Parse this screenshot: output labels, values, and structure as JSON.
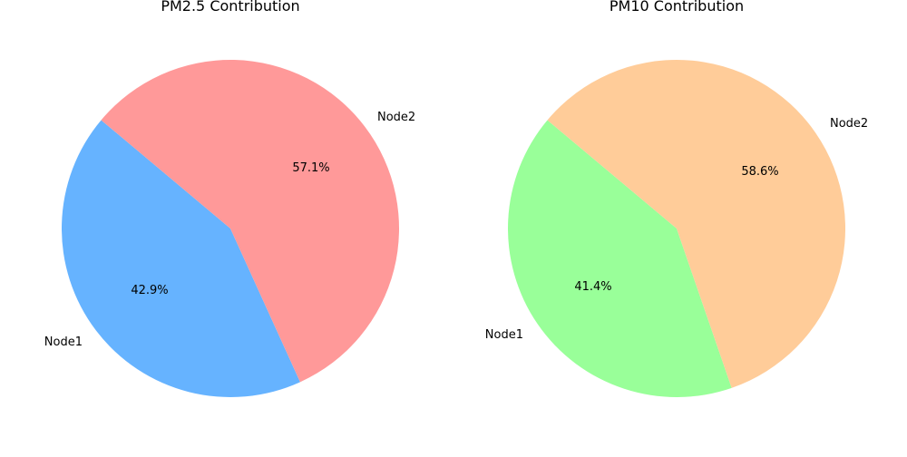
{
  "chart_data": [
    {
      "type": "pie",
      "title": "PM2.5 Contribution",
      "categories": [
        "Node1",
        "Node2"
      ],
      "values": [
        42.9,
        57.1
      ],
      "value_labels": [
        "42.9%",
        "57.1%"
      ],
      "colors": [
        "#66b3ff",
        "#ff9999"
      ],
      "start_angle_deg": 140
    },
    {
      "type": "pie",
      "title": "PM10 Contribution",
      "categories": [
        "Node1",
        "Node2"
      ],
      "values": [
        41.4,
        58.6
      ],
      "value_labels": [
        "41.4%",
        "58.6%"
      ],
      "colors": [
        "#99ff99",
        "#ffcc99"
      ],
      "start_angle_deg": 140
    }
  ]
}
